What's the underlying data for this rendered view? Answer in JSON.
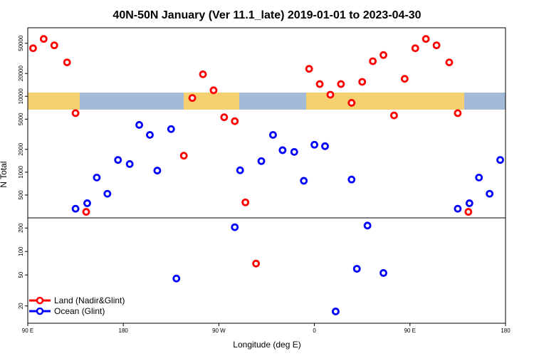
{
  "chart_data": {
    "type": "scatter",
    "title": "40N-50N January (Ver 11.1_late)   2019-01-01 to 2023-04-30",
    "xlabel": "Longitude (deg E)",
    "ylabel": "N Total",
    "y_scale": "log",
    "x_ticks": [
      "90 E",
      "180",
      "90 W",
      "0",
      "90 E",
      "180"
    ],
    "upper_y_ticks": [
      "500",
      "1000",
      "2000",
      "5000",
      "10000",
      "20000",
      "50000"
    ],
    "lower_y_ticks": [
      "20",
      "50",
      "100",
      "200"
    ],
    "legend_position": "bottom-left",
    "series": [
      {
        "name": "Land (Nadir&Glint)",
        "color": "#ff0000",
        "points": [
          {
            "x": 95,
            "y": 43000
          },
          {
            "x": 105,
            "y": 57000
          },
          {
            "x": 115,
            "y": 47000
          },
          {
            "x": 127,
            "y": 28000
          },
          {
            "x": 135,
            "y": 6000
          },
          {
            "x": 145,
            "y": 300
          },
          {
            "x": 237,
            "y": 1650
          },
          {
            "x": 245,
            "y": 9500
          },
          {
            "x": 255,
            "y": 19500
          },
          {
            "x": 265,
            "y": 12000
          },
          {
            "x": 275,
            "y": 5300
          },
          {
            "x": 285,
            "y": 4700
          },
          {
            "x": 295,
            "y": 400
          },
          {
            "x": 305,
            "y": 70
          },
          {
            "x": 355,
            "y": 23000
          },
          {
            "x": 365,
            "y": 14500
          },
          {
            "x": 375,
            "y": 10500
          },
          {
            "x": 385,
            "y": 14500
          },
          {
            "x": 395,
            "y": 8200
          },
          {
            "x": 405,
            "y": 15500
          },
          {
            "x": 415,
            "y": 29000
          },
          {
            "x": 425,
            "y": 35000
          },
          {
            "x": 435,
            "y": 5600
          },
          {
            "x": 445,
            "y": 17000
          },
          {
            "x": 455,
            "y": 43000
          },
          {
            "x": 465,
            "y": 57000
          },
          {
            "x": 475,
            "y": 47000
          },
          {
            "x": 487,
            "y": 28000
          },
          {
            "x": 495,
            "y": 6000
          },
          {
            "x": 505,
            "y": 300
          }
        ]
      },
      {
        "name": "Ocean (Glint)",
        "color": "#0000ff",
        "points": [
          {
            "x": 135,
            "y": 330
          },
          {
            "x": 146,
            "y": 390
          },
          {
            "x": 155,
            "y": 850
          },
          {
            "x": 165,
            "y": 520
          },
          {
            "x": 175,
            "y": 1450
          },
          {
            "x": 186,
            "y": 1280
          },
          {
            "x": 195,
            "y": 4200
          },
          {
            "x": 205,
            "y": 3100
          },
          {
            "x": 212,
            "y": 1050
          },
          {
            "x": 225,
            "y": 3700
          },
          {
            "x": 230,
            "y": 45
          },
          {
            "x": 285,
            "y": 205
          },
          {
            "x": 290,
            "y": 1060
          },
          {
            "x": 310,
            "y": 1400
          },
          {
            "x": 321,
            "y": 3100
          },
          {
            "x": 330,
            "y": 1950
          },
          {
            "x": 341,
            "y": 1850
          },
          {
            "x": 350,
            "y": 770
          },
          {
            "x": 360,
            "y": 2300
          },
          {
            "x": 370,
            "y": 2200
          },
          {
            "x": 380,
            "y": 17
          },
          {
            "x": 395,
            "y": 800
          },
          {
            "x": 400,
            "y": 60
          },
          {
            "x": 410,
            "y": 215
          },
          {
            "x": 425,
            "y": 53
          },
          {
            "x": 495,
            "y": 330
          },
          {
            "x": 506,
            "y": 390
          },
          {
            "x": 515,
            "y": 850
          },
          {
            "x": 525,
            "y": 520
          },
          {
            "x": 535,
            "y": 1450
          }
        ]
      }
    ]
  }
}
